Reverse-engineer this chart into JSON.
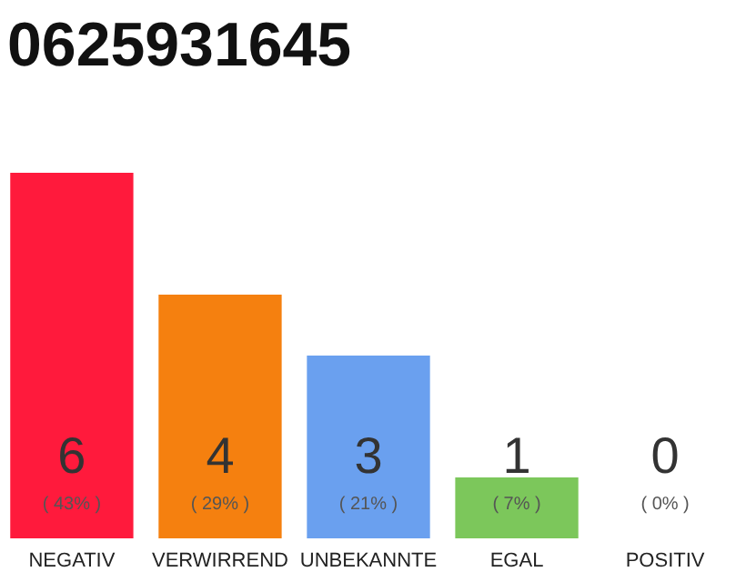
{
  "chart_data": {
    "type": "bar",
    "title": "0625931645",
    "categories": [
      "NEGATIV",
      "VERWIRREND",
      "UNBEKANNTE",
      "EGAL",
      "POSITIV"
    ],
    "values": [
      6,
      4,
      3,
      1,
      0
    ],
    "colors": [
      "#ff1a3c",
      "#f5800f",
      "#6aa0ef",
      "#7cc75b",
      "#bdbdbd"
    ],
    "data_labels": true,
    "annotations": [
      "( 43% )",
      "( 29% )",
      "( 21% )",
      "( 7% )",
      "( 0% )"
    ],
    "grid": false
  }
}
